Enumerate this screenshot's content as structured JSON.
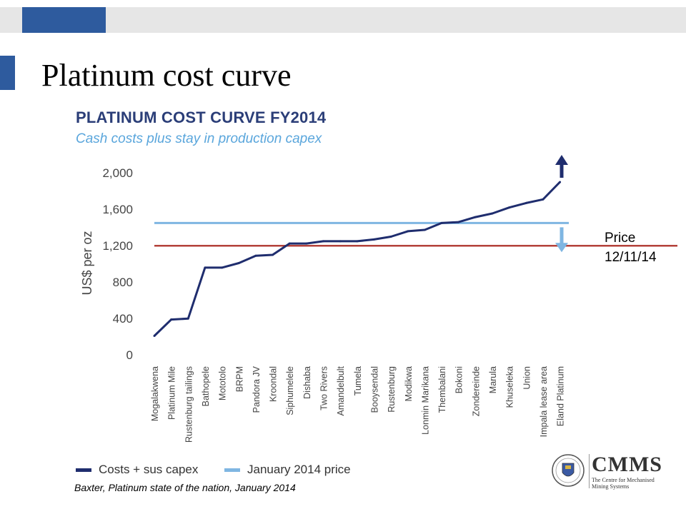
{
  "slide": {
    "title": "Platinum cost curve",
    "source": "Baxter, Platinum state of the nation, January 2014",
    "price_note": {
      "line1": "Price",
      "line2": "12/11/14"
    },
    "logo": {
      "word": "CMMS",
      "tagline": "The Centre for Mechanised Mining Systems"
    }
  },
  "chart_data": {
    "type": "line",
    "title": "PLATINUM COST CURVE FY2014",
    "subtitle": "Cash costs plus stay in production capex",
    "ylabel": "US$ per oz",
    "xlabel": "",
    "ylim": [
      0,
      2000
    ],
    "yticks": [
      0,
      400,
      800,
      1200,
      1600,
      2000
    ],
    "yticklabels": [
      "0",
      "400",
      "800",
      "1,200",
      "1,600",
      "2,000"
    ],
    "grid": false,
    "categories": [
      "Mogalakwena",
      "Platinum Mile",
      "Rustenburg tailings",
      "Bathopele",
      "Mototolo",
      "BRPM",
      "Pandora JV",
      "Kroondal",
      "Siphumelele",
      "Dishaba",
      "Two Rivers",
      "Amandelbult",
      "Tumela",
      "Booysendal",
      "Rustenburg",
      "Modikwa",
      "Lonmin Marikana",
      "Thembalani",
      "Bokoni",
      "Zondereinde",
      "Marula",
      "Khuseleka",
      "Union",
      "Impala lease area",
      "Eland Platinum"
    ],
    "series": [
      {
        "name": "Costs + sus capex",
        "color": "#1f2d6e",
        "values": [
          200,
          380,
          390,
          950,
          950,
          1000,
          1080,
          1090,
          1215,
          1215,
          1240,
          1240,
          1240,
          1260,
          1290,
          1350,
          1365,
          1440,
          1450,
          1505,
          1545,
          1610,
          1660,
          1700,
          1890
        ]
      }
    ],
    "reference_lines": [
      {
        "name": "January 2014 price",
        "value": 1440,
        "color": "#7fb6e2"
      },
      {
        "name": "Price 12/11/14",
        "value": 1190,
        "color": "#b3413a"
      }
    ],
    "annotations": {
      "arrow_up_color": "#1f2d6e",
      "arrow_down_color": "#7fb6e2"
    },
    "legend_position": "bottom-left"
  }
}
